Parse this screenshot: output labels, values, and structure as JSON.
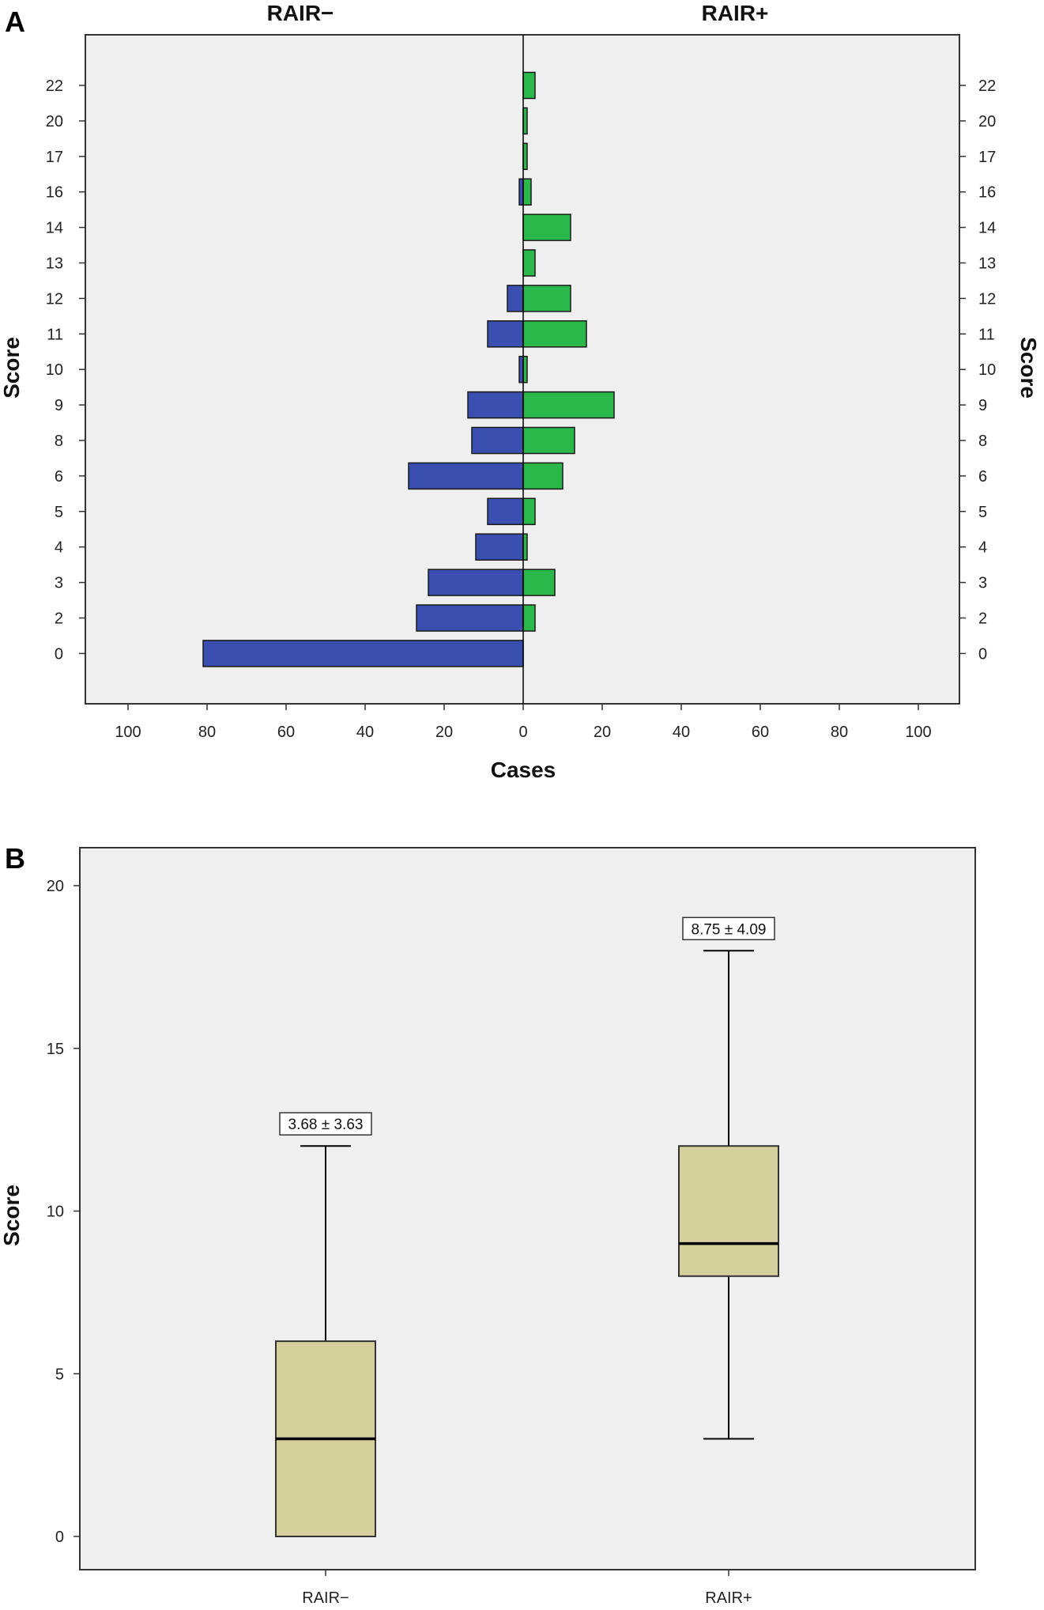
{
  "chart_data": [
    {
      "type": "bar",
      "panel_label": "A",
      "orientation": "horizontal",
      "layout": "population-pyramid",
      "left_title": "RAIR−",
      "right_title": "RAIR+",
      "xlabel": "Cases",
      "ylabel": "Score",
      "xlim": [
        0,
        100
      ],
      "x_ticks": [
        100,
        80,
        60,
        40,
        20,
        0,
        20,
        40,
        60,
        80,
        100
      ],
      "categories": [
        "22",
        "20",
        "17",
        "16",
        "14",
        "13",
        "12",
        "11",
        "10",
        "9",
        "8",
        "6",
        "5",
        "4",
        "3",
        "2",
        "0"
      ],
      "series": [
        {
          "name": "RAIR−",
          "side": "left",
          "color": "#3a4fb0",
          "values": [
            0,
            0,
            0,
            1,
            0,
            0,
            4,
            9,
            1,
            14,
            13,
            29,
            9,
            12,
            24,
            27,
            81
          ]
        },
        {
          "name": "RAIR+",
          "side": "right",
          "color": "#2bb84a",
          "values": [
            3,
            1,
            1,
            2,
            12,
            3,
            12,
            16,
            1,
            23,
            13,
            10,
            3,
            1,
            8,
            3,
            0
          ]
        }
      ],
      "grid": false
    },
    {
      "type": "box",
      "panel_label": "B",
      "ylabel": "Score",
      "ylim": [
        0,
        20
      ],
      "y_ticks": [
        "0",
        "5",
        "10",
        "15",
        "20"
      ],
      "categories": [
        "RAIR−",
        "RAIR+"
      ],
      "boxes": [
        {
          "name": "RAIR−",
          "min": 0,
          "q1": 0,
          "median": 3,
          "q3": 6,
          "max": 12,
          "annotation": "3.68 ± 3.63"
        },
        {
          "name": "RAIR+",
          "min": 3,
          "q1": 8,
          "median": 9,
          "q3": 12,
          "max": 18,
          "annotation": "8.75 ± 4.09"
        }
      ],
      "box_color": "#d4cf9b",
      "grid": false
    }
  ]
}
